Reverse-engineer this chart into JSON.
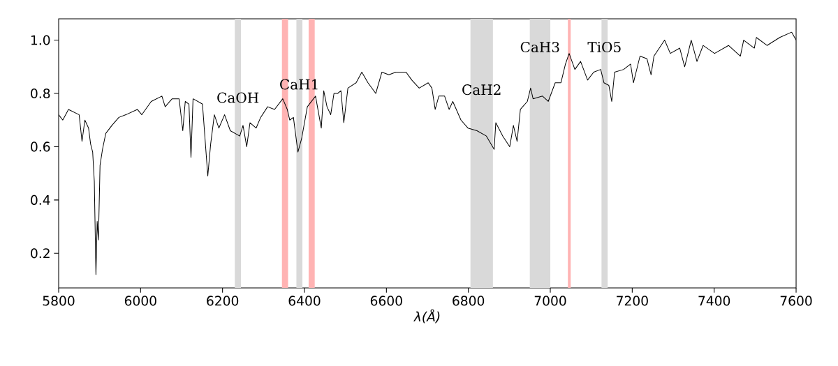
{
  "chart_data": {
    "type": "line",
    "xlabel": "λ(Å)",
    "xlim": [
      5800,
      7600
    ],
    "ylim": [
      0.07,
      1.08
    ],
    "xticks": [
      5800,
      6000,
      6200,
      6400,
      6600,
      6800,
      7000,
      7200,
      7400,
      7600
    ],
    "yticks": [
      0.2,
      0.4,
      0.6,
      0.8,
      {
        "value": 1.0,
        "label": "1.0"
      }
    ],
    "grid": false,
    "marker": "none",
    "line_style": "solid",
    "series": [
      {
        "color": "#000000",
        "x": [
          5800,
          5810,
          5824,
          5850,
          5857,
          5864,
          5873,
          5878,
          5883,
          5887,
          5891,
          5894,
          5897,
          5901,
          5907,
          5915,
          5930,
          5947,
          5964,
          5992,
          6003,
          6026,
          6052,
          6060,
          6077,
          6094,
          6103,
          6109,
          6118,
          6123,
          6128,
          6151,
          6164,
          6171,
          6180,
          6191,
          6205,
          6219,
          6242,
          6250,
          6259,
          6267,
          6282,
          6293,
          6310,
          6327,
          6347,
          6358,
          6364,
          6373,
          6384,
          6393,
          6407,
          6427,
          6441,
          6447,
          6455,
          6464,
          6472,
          6481,
          6489,
          6496,
          6506,
          6526,
          6540,
          6555,
          6574,
          6589,
          6606,
          6623,
          6648,
          6662,
          6680,
          6702,
          6711,
          6719,
          6728,
          6742,
          6753,
          6762,
          6782,
          6799,
          6821,
          6844,
          6863,
          6867,
          6884,
          6901,
          6910,
          6919,
          6927,
          6944,
          6952,
          6958,
          6981,
          6995,
          7012,
          7026,
          7037,
          7046,
          7060,
          7074,
          7091,
          7106,
          7123,
          7131,
          7143,
          7150,
          7157,
          7179,
          7196,
          7203,
          7219,
          7236,
          7246,
          7253,
          7279,
          7293,
          7316,
          7328,
          7344,
          7358,
          7373,
          7401,
          7435,
          7464,
          7472,
          7498,
          7503,
          7529,
          7560,
          7589,
          7600
        ],
        "values": [
          0.72,
          0.7,
          0.74,
          0.72,
          0.62,
          0.7,
          0.67,
          0.61,
          0.58,
          0.47,
          0.12,
          0.32,
          0.25,
          0.53,
          0.59,
          0.65,
          0.68,
          0.71,
          0.72,
          0.74,
          0.72,
          0.77,
          0.79,
          0.75,
          0.78,
          0.78,
          0.66,
          0.77,
          0.76,
          0.56,
          0.78,
          0.76,
          0.49,
          0.61,
          0.72,
          0.67,
          0.72,
          0.66,
          0.64,
          0.68,
          0.6,
          0.69,
          0.67,
          0.71,
          0.75,
          0.74,
          0.78,
          0.74,
          0.7,
          0.71,
          0.58,
          0.63,
          0.75,
          0.79,
          0.67,
          0.81,
          0.75,
          0.72,
          0.8,
          0.8,
          0.81,
          0.69,
          0.82,
          0.84,
          0.88,
          0.84,
          0.8,
          0.88,
          0.87,
          0.88,
          0.88,
          0.85,
          0.82,
          0.84,
          0.82,
          0.74,
          0.79,
          0.79,
          0.74,
          0.77,
          0.7,
          0.67,
          0.66,
          0.64,
          0.59,
          0.69,
          0.64,
          0.6,
          0.68,
          0.62,
          0.74,
          0.77,
          0.82,
          0.78,
          0.79,
          0.77,
          0.84,
          0.84,
          0.91,
          0.95,
          0.89,
          0.92,
          0.85,
          0.88,
          0.89,
          0.84,
          0.83,
          0.77,
          0.88,
          0.89,
          0.91,
          0.84,
          0.94,
          0.93,
          0.87,
          0.94,
          1.0,
          0.95,
          0.97,
          0.9,
          1.0,
          0.92,
          0.98,
          0.95,
          0.98,
          0.94,
          1.0,
          0.97,
          1.01,
          0.98,
          1.01,
          1.03,
          1.0
        ]
      }
    ],
    "bands": [
      {
        "axis": "x",
        "from": 6230,
        "to": 6245,
        "label": "CaOH",
        "color": "#d9d9d9"
      },
      {
        "axis": "x",
        "from": 6345,
        "to": 6360,
        "color": "#ffb3b3"
      },
      {
        "axis": "x",
        "from": 6380,
        "to": 6395,
        "label": "CaH1",
        "color": "#d9d9d9"
      },
      {
        "axis": "x",
        "from": 6410,
        "to": 6425,
        "color": "#ffb3b3"
      },
      {
        "axis": "x",
        "from": 6805,
        "to": 6860,
        "label": "CaH2",
        "color": "#d9d9d9"
      },
      {
        "axis": "x",
        "from": 6950,
        "to": 7000,
        "label": "CaH3",
        "color": "#d9d9d9"
      },
      {
        "axis": "x",
        "from": 7043,
        "to": 7050,
        "color": "#ffb3b3"
      },
      {
        "axis": "x",
        "from": 7125,
        "to": 7140,
        "label": "TiO5",
        "color": "#d9d9d9"
      }
    ]
  }
}
